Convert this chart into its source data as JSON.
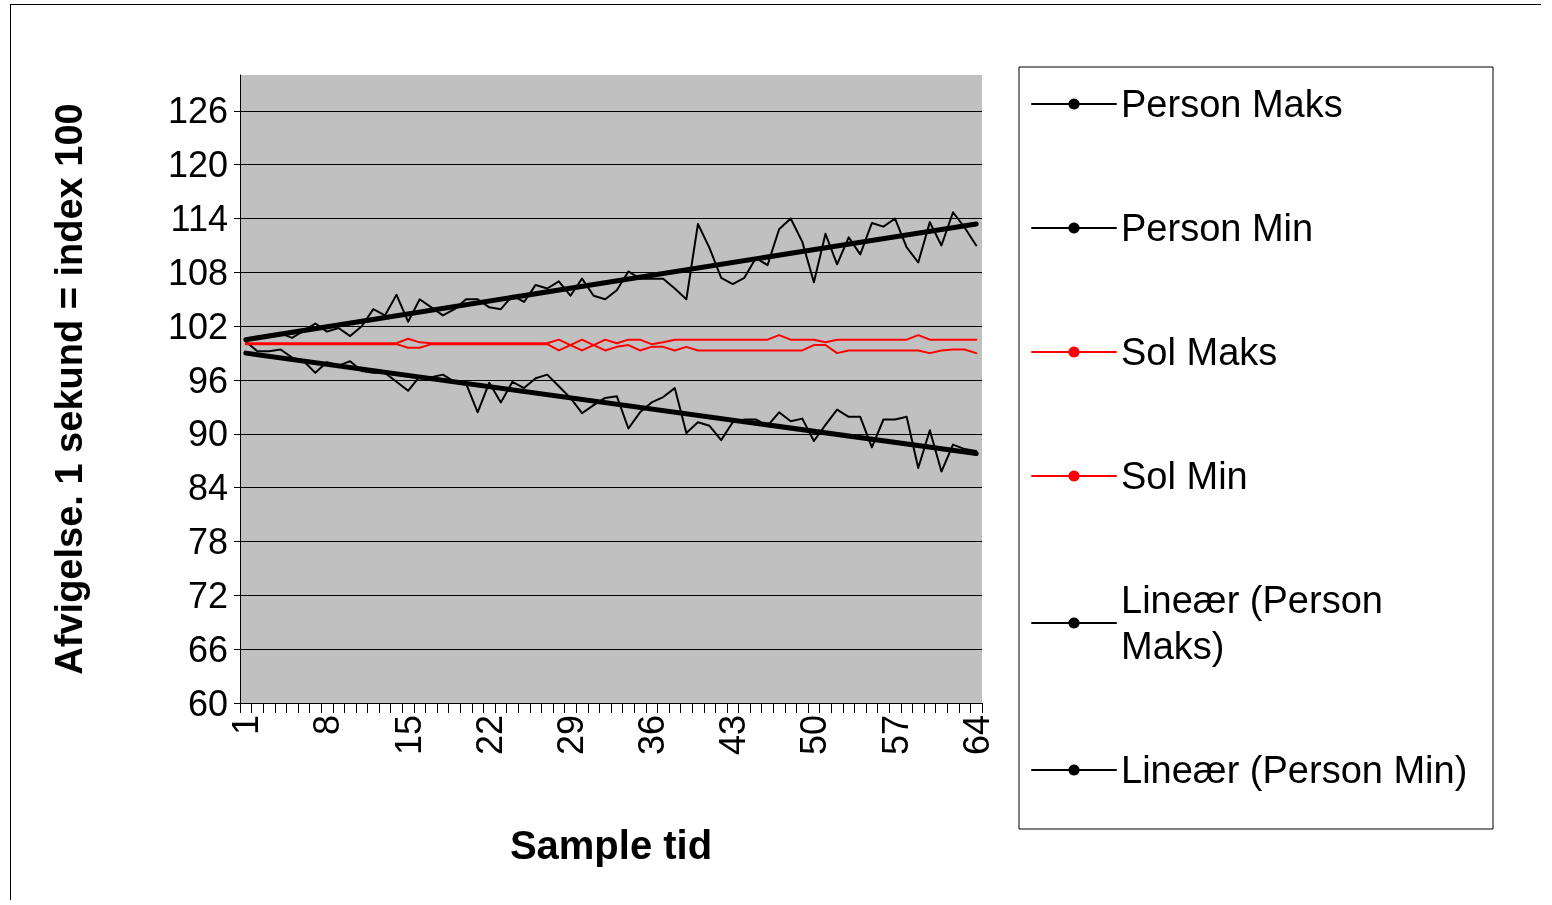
{
  "chart_data": {
    "type": "line",
    "xlabel": "Sample tid",
    "ylabel": "Afvigelse. 1 sekund = index 100",
    "categories": [
      "1",
      null,
      null,
      null,
      null,
      null,
      null,
      "8",
      null,
      null,
      null,
      null,
      null,
      null,
      "15",
      null,
      null,
      null,
      null,
      null,
      null,
      "22",
      null,
      null,
      null,
      null,
      null,
      null,
      "29",
      null,
      null,
      null,
      null,
      null,
      null,
      "36",
      null,
      null,
      null,
      null,
      null,
      null,
      "43",
      null,
      null,
      null,
      null,
      null,
      null,
      "50",
      null,
      null,
      null,
      null,
      null,
      null,
      "57",
      null,
      null,
      null,
      null,
      null,
      null,
      "64"
    ],
    "series": [
      {
        "name": "Person Maks",
        "color": "#000000",
        "values": [
          100.6,
          100.8,
          101.0,
          101.2,
          100.7,
          101.5,
          102.3,
          101.4,
          101.8,
          100.9,
          102.0,
          103.9,
          103.2,
          105.5,
          102.5,
          105.0,
          104.1,
          103.2,
          103.9,
          105.0,
          105.0,
          104.1,
          103.9,
          105.4,
          104.7,
          106.6,
          106.2,
          107.0,
          105.4,
          107.3,
          105.4,
          105.0,
          106.0,
          108.1,
          107.3,
          107.3,
          107.3,
          106.2,
          105.0,
          113.4,
          110.7,
          107.4,
          106.7,
          107.4,
          109.6,
          108.8,
          112.8,
          114.0,
          111.4,
          106.9,
          112.3,
          108.9,
          111.9,
          110.0,
          113.5,
          113.1,
          114.0,
          110.8,
          109.1,
          113.6,
          111.0,
          114.7,
          113.0,
          111.0
        ]
      },
      {
        "name": "Person Min",
        "color": "#000000",
        "values": [
          100.3,
          99.2,
          99.2,
          99.4,
          98.5,
          98.1,
          96.8,
          98.0,
          97.6,
          98.1,
          97.0,
          96.8,
          96.8,
          95.8,
          94.8,
          96.4,
          96.3,
          96.6,
          95.8,
          95.6,
          92.4,
          95.7,
          93.5,
          95.8,
          95.1,
          96.2,
          96.6,
          95.3,
          94.0,
          92.3,
          93.2,
          94.0,
          94.2,
          90.6,
          92.4,
          93.5,
          94.1,
          95.1,
          90.1,
          91.3,
          90.9,
          89.3,
          91.3,
          91.6,
          91.6,
          90.9,
          92.4,
          91.4,
          91.7,
          89.2,
          91.0,
          92.7,
          91.9,
          91.9,
          88.5,
          91.6,
          91.6,
          91.9,
          86.2,
          90.4,
          85.8,
          88.8,
          88.3,
          88.1
        ]
      },
      {
        "name": "Sol Maks",
        "color": "#ff0000",
        "values": [
          100.1,
          100.1,
          100.1,
          100.1,
          100.1,
          100.1,
          100.1,
          100.1,
          100.1,
          100.1,
          100.1,
          100.1,
          100.1,
          100.1,
          100.6,
          100.2,
          100.1,
          100.1,
          100.1,
          100.1,
          100.1,
          100.1,
          100.1,
          100.1,
          100.1,
          100.1,
          100.1,
          100.5,
          99.9,
          100.5,
          99.9,
          100.5,
          100.1,
          100.5,
          100.5,
          100.0,
          100.2,
          100.5,
          100.5,
          100.5,
          100.5,
          100.5,
          100.5,
          100.5,
          100.5,
          100.5,
          101.0,
          100.5,
          100.5,
          100.5,
          100.2,
          100.5,
          100.5,
          100.5,
          100.5,
          100.5,
          100.5,
          100.5,
          101.0,
          100.5,
          100.5,
          100.5,
          100.5,
          100.5
        ]
      },
      {
        "name": "Sol Min",
        "color": "#ff0000",
        "values": [
          100.0,
          100.0,
          100.0,
          100.0,
          100.0,
          100.0,
          100.0,
          100.0,
          100.0,
          100.0,
          100.0,
          100.0,
          100.0,
          100.0,
          99.6,
          99.6,
          100.0,
          100.0,
          100.0,
          100.0,
          100.0,
          100.0,
          100.0,
          100.0,
          100.0,
          100.0,
          100.0,
          99.3,
          99.9,
          99.3,
          99.9,
          99.3,
          99.7,
          99.9,
          99.3,
          99.7,
          99.7,
          99.3,
          99.7,
          99.3,
          99.3,
          99.3,
          99.3,
          99.3,
          99.3,
          99.3,
          99.3,
          99.3,
          99.3,
          99.9,
          99.9,
          99.0,
          99.3,
          99.3,
          99.3,
          99.3,
          99.3,
          99.3,
          99.3,
          99.0,
          99.3,
          99.4,
          99.4,
          99.0
        ]
      },
      {
        "name": "Lineær (Person Maks)",
        "color": "#000000",
        "type": "line",
        "x": [
          "1",
          "64"
        ],
        "values": [
          100.5,
          113.4
        ]
      },
      {
        "name": "Lineær (Person Min)",
        "color": "#000000",
        "type": "line",
        "x": [
          "1",
          "64"
        ],
        "values": [
          99.0,
          87.8
        ]
      }
    ],
    "ylim": [
      60,
      130
    ],
    "yticks": [
      60,
      66,
      72,
      78,
      84,
      90,
      96,
      102,
      108,
      114,
      120,
      126
    ],
    "grid": "y",
    "legend": "right",
    "marker": "none",
    "line_style": "solid"
  }
}
